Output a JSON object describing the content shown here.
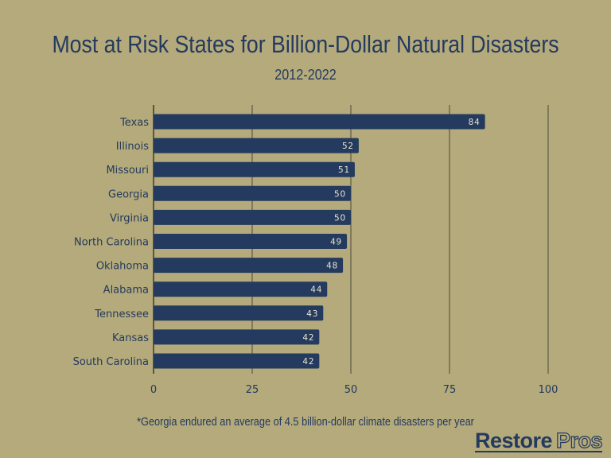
{
  "chart_data": {
    "type": "bar",
    "orientation": "horizontal",
    "title": "Most at Risk States for Billion-Dollar Natural Disasters",
    "subtitle": "2012-2022",
    "categories": [
      "Texas",
      "Illinois",
      "Missouri",
      "Georgia",
      "Virginia",
      "North Carolina",
      "Oklahoma",
      "Alabama",
      "Tennessee",
      "Kansas",
      "South Carolina"
    ],
    "values": [
      84,
      52,
      51,
      50,
      50,
      49,
      48,
      44,
      43,
      42,
      42
    ],
    "xlabel": "",
    "ylabel": "",
    "xlim": [
      0,
      100
    ],
    "xticks": [
      0,
      25,
      50,
      75,
      100
    ],
    "grid": true,
    "footnote": "*Georgia endured an average of 4.5 billion-dollar climate disasters per year"
  },
  "colors": {
    "background": "#b4aa7b",
    "bar": "#243a5e",
    "text": "#243a5e"
  },
  "logo": {
    "part1": "Restore",
    "part2": "Pros"
  }
}
